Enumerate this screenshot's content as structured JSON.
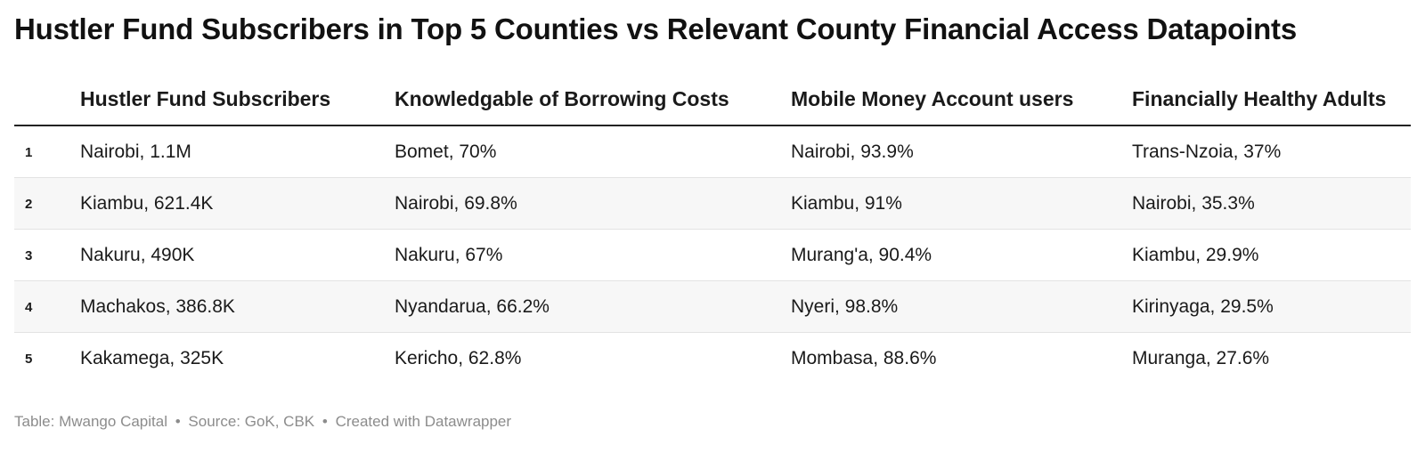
{
  "title": "Hustler Fund Subscribers in Top 5 Counties vs Relevant County Financial Access Datapoints",
  "chart_data": {
    "type": "table",
    "title": "Hustler Fund Subscribers in Top 5 Counties vs Relevant County Financial Access Datapoints",
    "columns": [
      "",
      "Hustler Fund Subscribers",
      "Knowledgable of Borrowing Costs",
      "Mobile Money Account users",
      "Financially Healthy Adults"
    ],
    "rows": [
      {
        "rank": "1",
        "cells": [
          "Nairobi, 1.1M",
          "Bomet, 70%",
          "Nairobi, 93.9%",
          "Trans-Nzoia, 37%"
        ]
      },
      {
        "rank": "2",
        "cells": [
          "Kiambu, 621.4K",
          "Nairobi, 69.8%",
          "Kiambu, 91%",
          "Nairobi, 35.3%"
        ]
      },
      {
        "rank": "3",
        "cells": [
          "Nakuru, 490K",
          "Nakuru, 67%",
          "Murang'a, 90.4%",
          "Kiambu, 29.9%"
        ]
      },
      {
        "rank": "4",
        "cells": [
          "Machakos, 386.8K",
          "Nyandarua, 66.2%",
          "Nyeri, 98.8%",
          "Kirinyaga, 29.5%"
        ]
      },
      {
        "rank": "5",
        "cells": [
          "Kakamega, 325K",
          "Kericho, 62.8%",
          "Mombasa, 88.6%",
          "Muranga, 27.6%"
        ]
      }
    ]
  },
  "footer": {
    "credit": "Table: Mwango Capital",
    "separator": "•",
    "source": "Source: GoK, CBK",
    "tool": "Created with Datawrapper"
  }
}
